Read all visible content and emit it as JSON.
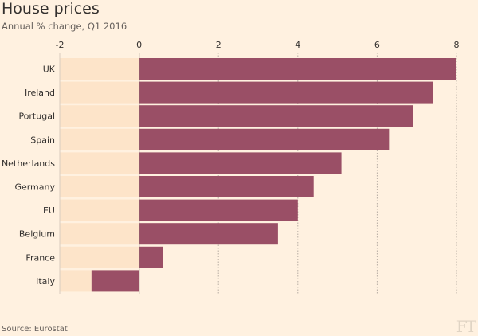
{
  "chart_data": {
    "type": "bar",
    "orientation": "horizontal",
    "title": "House prices",
    "subtitle": "Annual % change, Q1 2016",
    "categories": [
      "UK",
      "Ireland",
      "Portugal",
      "Spain",
      "Netherlands",
      "Germany",
      "EU",
      "Belgium",
      "France",
      "Italy"
    ],
    "values": [
      8.0,
      7.4,
      6.9,
      6.3,
      5.1,
      4.4,
      4.0,
      3.5,
      0.6,
      -1.2
    ],
    "xlim": [
      -2,
      8
    ],
    "xticks": [
      -2,
      0,
      2,
      4,
      6,
      8
    ],
    "xtick_labels": [
      "-2",
      "0",
      "2",
      "4",
      "6",
      "8"
    ],
    "xlabel": "",
    "ylabel": "",
    "grid": true,
    "source": "Source: Eurostat",
    "logo": "FT",
    "colors": {
      "bar": "#9a4f66",
      "negative_band": "#fde4c9",
      "background": "#fff1e0"
    }
  }
}
